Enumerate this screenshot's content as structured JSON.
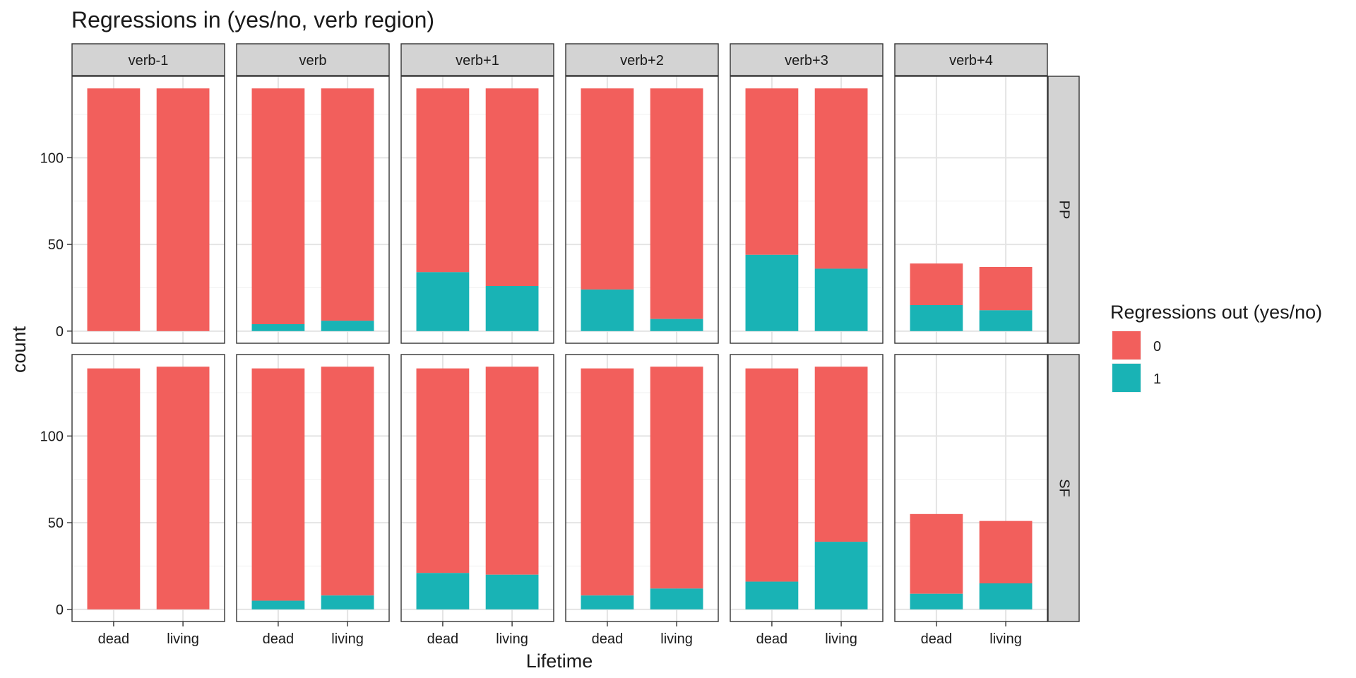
{
  "chart_data": {
    "type": "bar",
    "stacked": true,
    "title": "Regressions in (yes/no, verb region)",
    "xlabel": "Lifetime",
    "ylabel": "count",
    "ylim": [
      -7,
      147
    ],
    "yticks": [
      0,
      50,
      100
    ],
    "grid": true,
    "categories": [
      "dead",
      "living"
    ],
    "columns": [
      "verb-1",
      "verb",
      "verb+1",
      "verb+2",
      "verb+3",
      "verb+4"
    ],
    "rows": [
      "PP",
      "SF"
    ],
    "legend": {
      "title": "Regressions out (yes/no)",
      "position": "right",
      "items": [
        {
          "label": "0",
          "color": "#F25F5C"
        },
        {
          "label": "1",
          "color": "#19B3B5"
        }
      ]
    },
    "series_colors": {
      "0": "#F25F5C",
      "1": "#19B3B5"
    },
    "panels": [
      {
        "row": "PP",
        "column": "verb-1",
        "bars": [
          {
            "category": "dead",
            "total": 140,
            "one": 0
          },
          {
            "category": "living",
            "total": 140,
            "one": 0
          }
        ]
      },
      {
        "row": "PP",
        "column": "verb",
        "bars": [
          {
            "category": "dead",
            "total": 140,
            "one": 4
          },
          {
            "category": "living",
            "total": 140,
            "one": 6
          }
        ]
      },
      {
        "row": "PP",
        "column": "verb+1",
        "bars": [
          {
            "category": "dead",
            "total": 140,
            "one": 34
          },
          {
            "category": "living",
            "total": 140,
            "one": 26
          }
        ]
      },
      {
        "row": "PP",
        "column": "verb+2",
        "bars": [
          {
            "category": "dead",
            "total": 140,
            "one": 24
          },
          {
            "category": "living",
            "total": 140,
            "one": 7
          }
        ]
      },
      {
        "row": "PP",
        "column": "verb+3",
        "bars": [
          {
            "category": "dead",
            "total": 140,
            "one": 44
          },
          {
            "category": "living",
            "total": 140,
            "one": 36
          }
        ]
      },
      {
        "row": "PP",
        "column": "verb+4",
        "bars": [
          {
            "category": "dead",
            "total": 39,
            "one": 15
          },
          {
            "category": "living",
            "total": 37,
            "one": 12
          }
        ]
      },
      {
        "row": "SF",
        "column": "verb-1",
        "bars": [
          {
            "category": "dead",
            "total": 139,
            "one": 0
          },
          {
            "category": "living",
            "total": 140,
            "one": 0
          }
        ]
      },
      {
        "row": "SF",
        "column": "verb",
        "bars": [
          {
            "category": "dead",
            "total": 139,
            "one": 5
          },
          {
            "category": "living",
            "total": 140,
            "one": 8
          }
        ]
      },
      {
        "row": "SF",
        "column": "verb+1",
        "bars": [
          {
            "category": "dead",
            "total": 139,
            "one": 21
          },
          {
            "category": "living",
            "total": 140,
            "one": 20
          }
        ]
      },
      {
        "row": "SF",
        "column": "verb+2",
        "bars": [
          {
            "category": "dead",
            "total": 139,
            "one": 8
          },
          {
            "category": "living",
            "total": 140,
            "one": 12
          }
        ]
      },
      {
        "row": "SF",
        "column": "verb+3",
        "bars": [
          {
            "category": "dead",
            "total": 139,
            "one": 16
          },
          {
            "category": "living",
            "total": 140,
            "one": 39
          }
        ]
      },
      {
        "row": "SF",
        "column": "verb+4",
        "bars": [
          {
            "category": "dead",
            "total": 55,
            "one": 9
          },
          {
            "category": "living",
            "total": 51,
            "one": 15
          }
        ]
      }
    ]
  }
}
